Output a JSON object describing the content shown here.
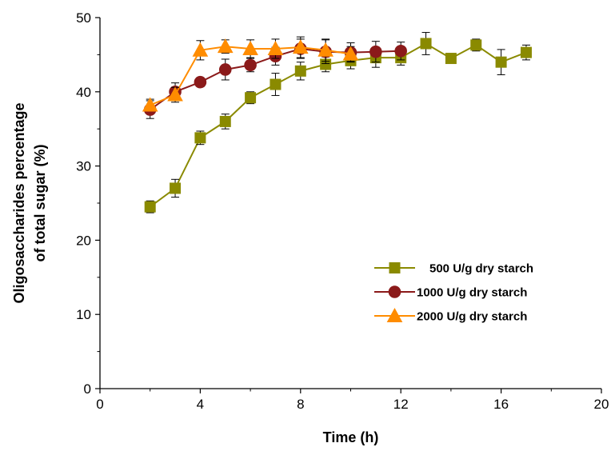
{
  "chart_data": {
    "type": "line",
    "xlabel": "Time (h)",
    "ylabel_lines": [
      "Oligosaccharides percentage",
      "of total sugar (%)"
    ],
    "xlim": [
      0,
      20
    ],
    "ylim": [
      0,
      50
    ],
    "xticks": [
      0,
      4,
      8,
      12,
      16,
      20
    ],
    "yticks": [
      0,
      10,
      20,
      30,
      40,
      50
    ],
    "grid": false,
    "legend_position": "center-right",
    "series": [
      {
        "name": "500 U/g dry starch",
        "marker": "square",
        "color": "#8a8a00",
        "x": [
          2,
          3,
          4,
          5,
          6,
          7,
          8,
          9,
          10,
          11,
          12,
          13,
          14,
          15,
          16,
          17
        ],
        "y": [
          24.5,
          27.0,
          33.8,
          36.0,
          39.2,
          41.0,
          42.8,
          43.7,
          44.2,
          44.6,
          44.6,
          46.5,
          44.5,
          46.3,
          44.0,
          45.3
        ],
        "err": [
          0.8,
          1.2,
          0.9,
          1.0,
          0.8,
          1.5,
          1.2,
          1.0,
          1.1,
          1.3,
          1.0,
          1.5,
          0.6,
          0.8,
          1.7,
          1.0
        ]
      },
      {
        "name": "1000 U/g dry starch",
        "marker": "circle",
        "color": "#8b1a1a",
        "x": [
          2,
          3,
          4,
          5,
          6,
          7,
          8,
          9,
          10,
          11,
          12
        ],
        "y": [
          37.6,
          40.0,
          41.3,
          43.0,
          43.6,
          44.8,
          45.8,
          45.4,
          45.3,
          45.4,
          45.5
        ],
        "err": [
          1.2,
          1.2,
          0.6,
          1.4,
          0.9,
          1.2,
          1.3,
          1.6,
          1.3,
          1.4,
          1.2
        ]
      },
      {
        "name": "2000 U/g dry starch",
        "marker": "triangle",
        "color": "#ff8c00",
        "x": [
          2,
          3,
          4,
          5,
          6,
          7,
          8,
          9,
          10
        ],
        "y": [
          38.2,
          39.6,
          45.6,
          46.1,
          45.8,
          45.8,
          46.0,
          45.6,
          45.1
        ],
        "err": [
          0.8,
          1.0,
          1.3,
          0.9,
          1.2,
          1.3,
          1.4,
          1.5,
          1.0
        ]
      }
    ]
  }
}
